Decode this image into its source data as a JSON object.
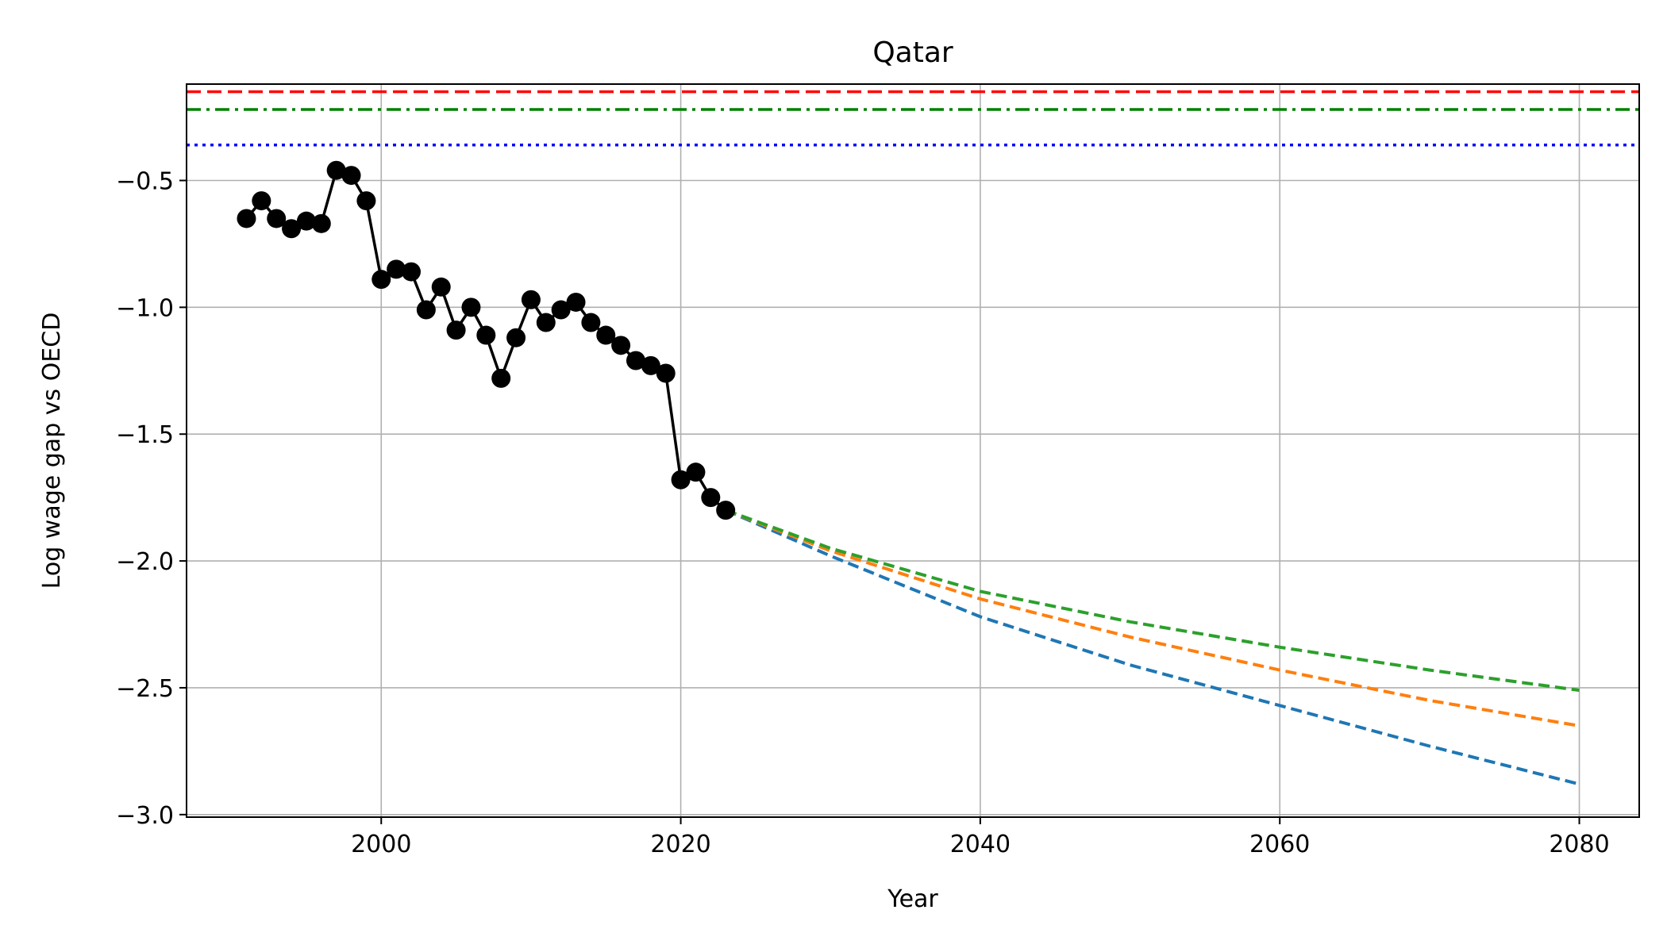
{
  "chart_data": {
    "type": "line",
    "title": "Qatar",
    "xlabel": "Year",
    "ylabel": "Log wage gap vs OECD",
    "xlim": [
      1987,
      2084
    ],
    "ylim": [
      -3.01,
      -0.12
    ],
    "x_ticks": [
      2000,
      2020,
      2040,
      2060,
      2080
    ],
    "y_ticks": [
      -3.0,
      -2.5,
      -2.0,
      -1.5,
      -1.0,
      -0.5
    ],
    "x_tick_labels": [
      "2000",
      "2020",
      "2040",
      "2060",
      "2080"
    ],
    "y_tick_labels": [
      "−3.0",
      "−2.5",
      "−2.0",
      "−1.5",
      "−1.0",
      "−0.5"
    ],
    "grid": true,
    "legend": "none",
    "series": [
      {
        "style": "solid-markers",
        "color": "#000000",
        "x": [
          1991,
          1992,
          1993,
          1994,
          1995,
          1996,
          1997,
          1998,
          1999,
          2000,
          2001,
          2002,
          2003,
          2004,
          2005,
          2006,
          2007,
          2008,
          2009,
          2010,
          2011,
          2012,
          2013,
          2014,
          2015,
          2016,
          2017,
          2018,
          2019,
          2020,
          2021,
          2022,
          2023
        ],
        "y": [
          -0.65,
          -0.58,
          -0.65,
          -0.69,
          -0.66,
          -0.67,
          -0.46,
          -0.48,
          -0.58,
          -0.89,
          -0.85,
          -0.86,
          -1.01,
          -0.92,
          -1.09,
          -1.0,
          -1.11,
          -1.28,
          -1.12,
          -0.97,
          -1.06,
          -1.01,
          -0.98,
          -1.06,
          -1.11,
          -1.15,
          -1.21,
          -1.23,
          -1.26,
          -1.68,
          -1.65,
          -1.75,
          -1.8
        ]
      },
      {
        "style": "dashed",
        "color": "#1f77b4",
        "x": [
          2023,
          2030,
          2040,
          2050,
          2060,
          2070,
          2080
        ],
        "y": [
          -1.8,
          -1.98,
          -2.22,
          -2.41,
          -2.57,
          -2.73,
          -2.88
        ]
      },
      {
        "style": "dashed",
        "color": "#ff7f0e",
        "x": [
          2023,
          2030,
          2040,
          2050,
          2060,
          2070,
          2080
        ],
        "y": [
          -1.8,
          -1.96,
          -2.15,
          -2.3,
          -2.43,
          -2.55,
          -2.65
        ]
      },
      {
        "style": "dashed",
        "color": "#2ca02c",
        "x": [
          2023,
          2030,
          2040,
          2050,
          2060,
          2070,
          2080
        ],
        "y": [
          -1.8,
          -1.95,
          -2.12,
          -2.24,
          -2.34,
          -2.43,
          -2.51
        ]
      }
    ],
    "hlines": [
      {
        "y": -0.15,
        "color": "#ff0000",
        "style": "dashed"
      },
      {
        "y": -0.22,
        "color": "#008000",
        "style": "dashdot"
      },
      {
        "y": -0.36,
        "color": "#0000ff",
        "style": "dotted"
      }
    ]
  }
}
